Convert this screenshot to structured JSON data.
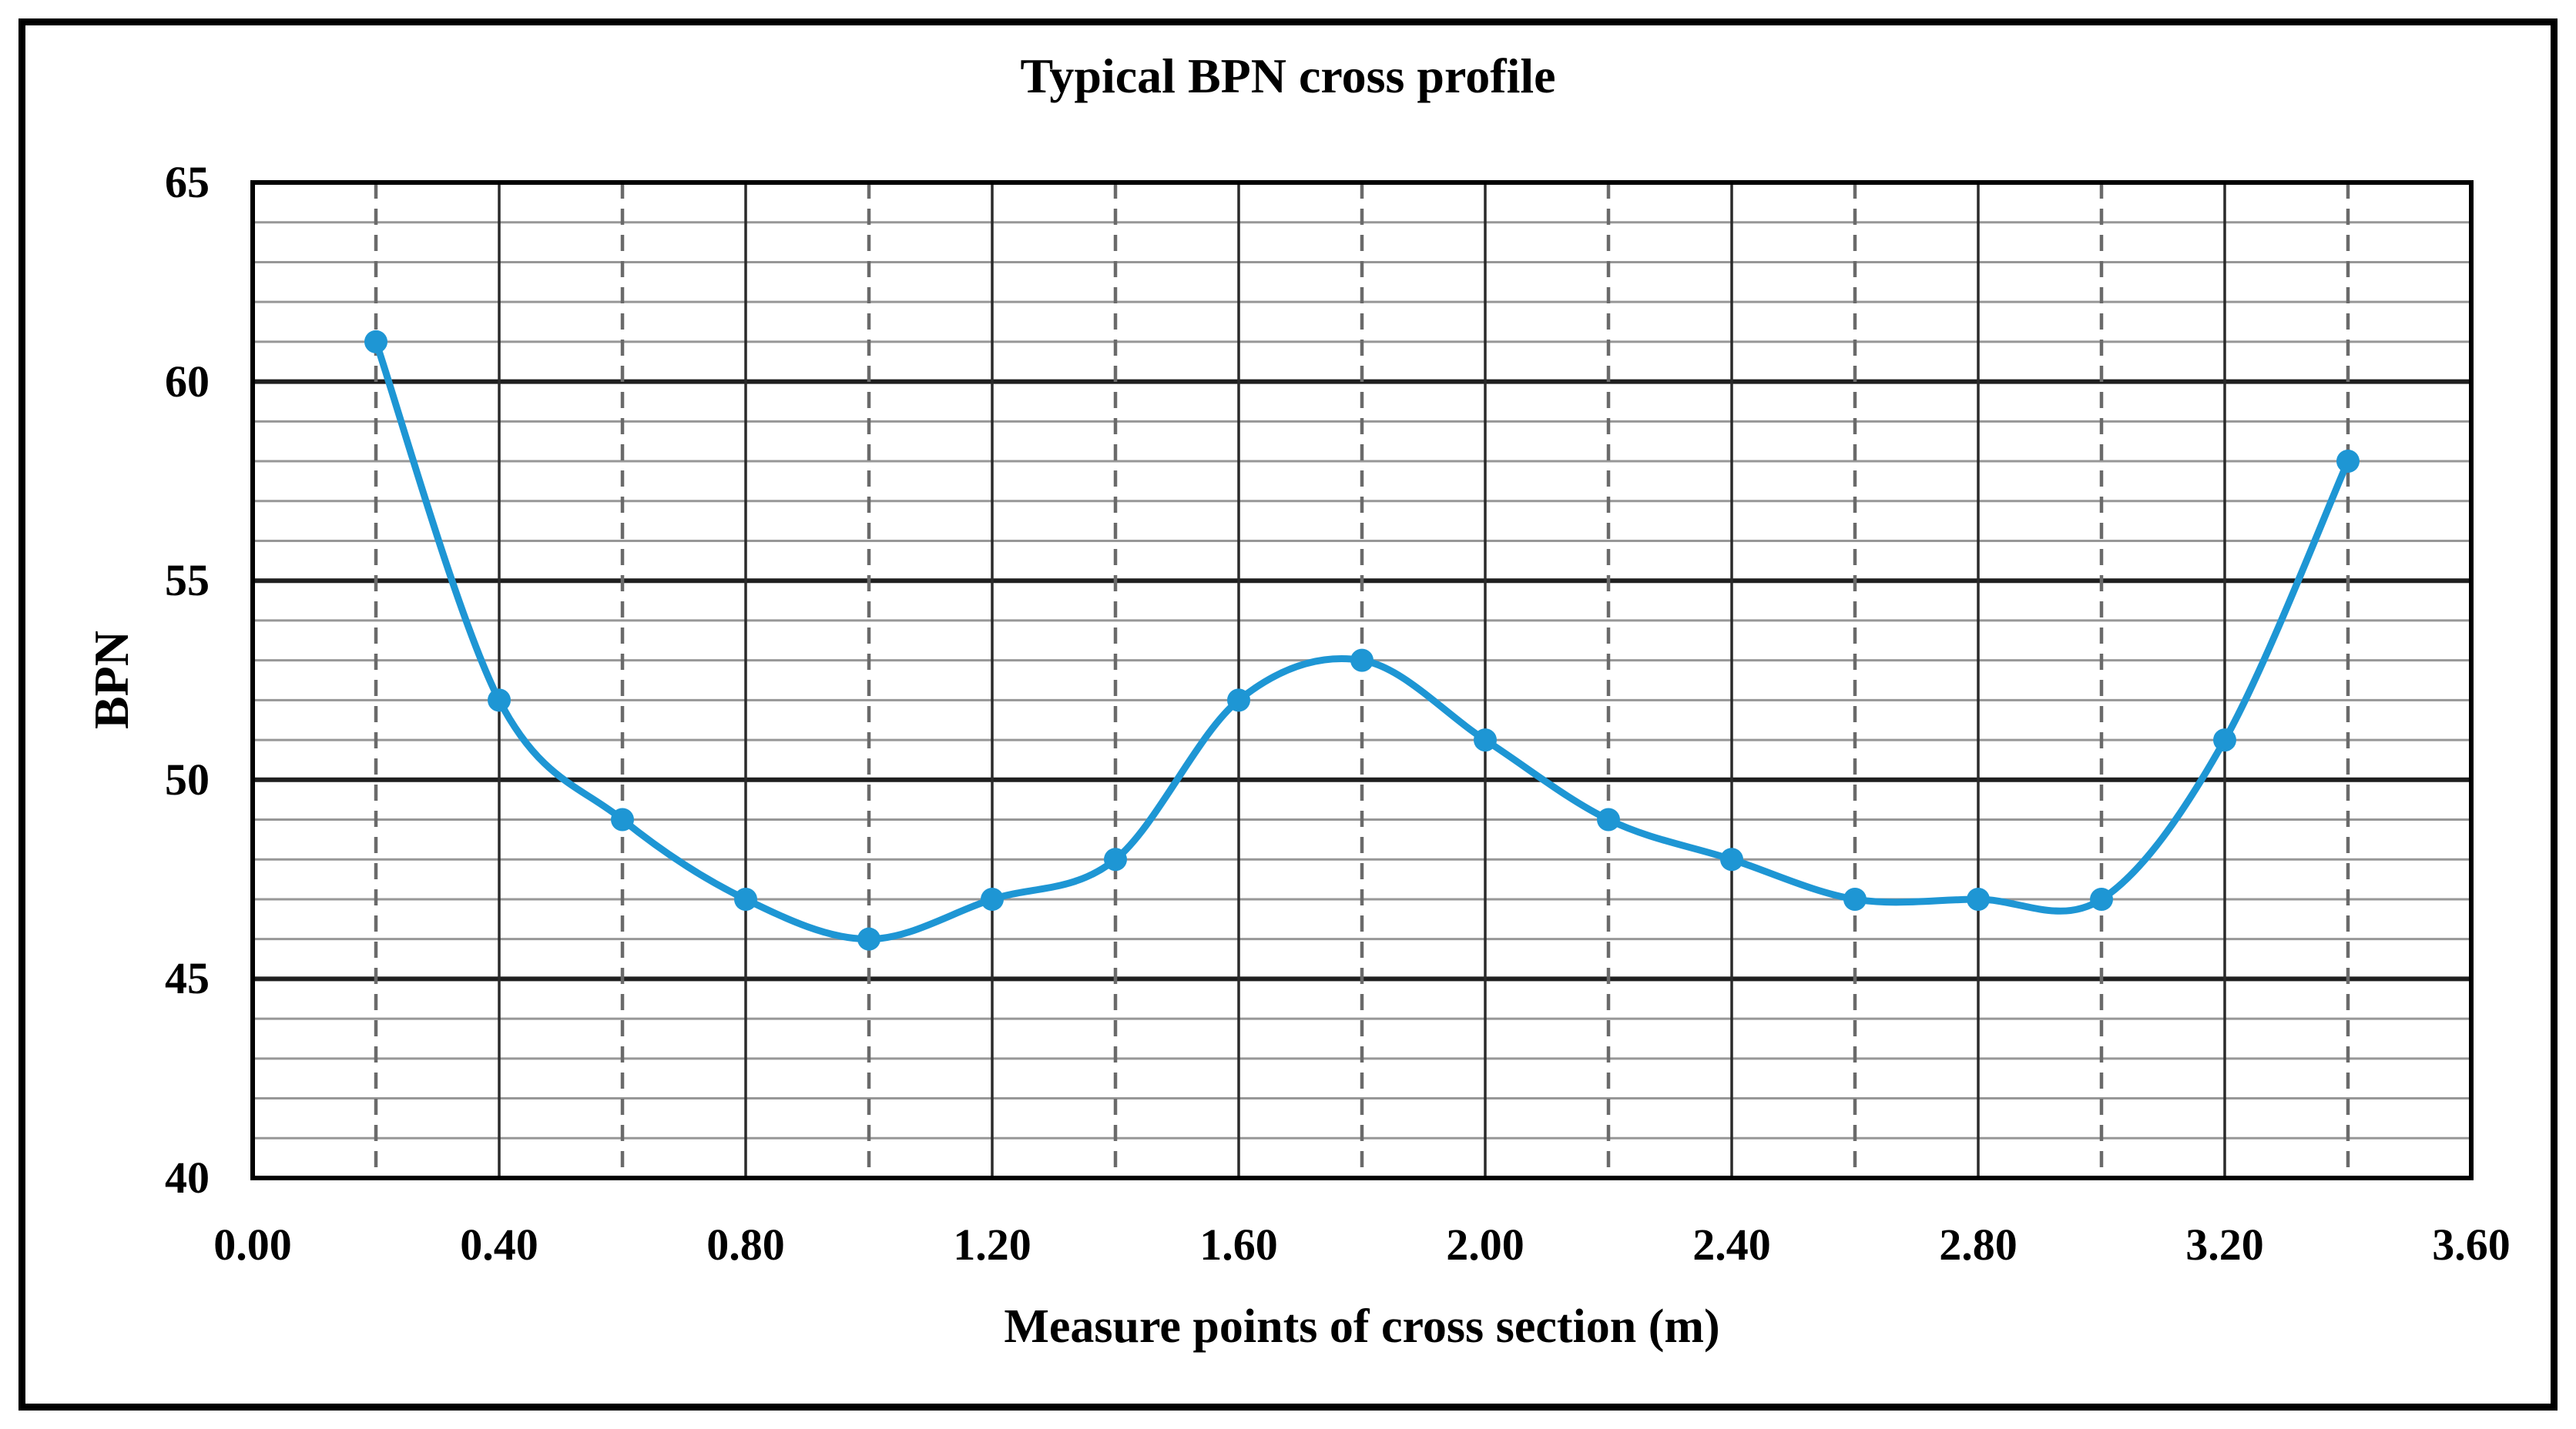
{
  "figure": {
    "background": "#ffffff",
    "frame_color": "#000000"
  },
  "chart_data": {
    "type": "line",
    "title": "Typical BPN cross profile",
    "xlabel": "Measure points of cross section (m)",
    "ylabel": "BPN",
    "series": [
      {
        "name": "BPN cross profile",
        "x": [
          0.2,
          0.4,
          0.6,
          0.8,
          1.0,
          1.2,
          1.4,
          1.6,
          1.8,
          2.0,
          2.2,
          2.4,
          2.6,
          2.8,
          3.0,
          3.2,
          3.4
        ],
        "values": [
          61,
          52,
          49,
          47,
          46,
          47,
          48,
          52,
          53,
          51,
          49,
          48,
          47,
          47,
          47,
          51,
          58
        ]
      }
    ],
    "xlim": [
      0.0,
      3.6
    ],
    "ylim": [
      40,
      65
    ],
    "x_tick_values": [
      0.0,
      0.4,
      0.8,
      1.2,
      1.6,
      2.0,
      2.4,
      2.8,
      3.2,
      3.6
    ],
    "x_tick_labels": [
      "0.00",
      "0.40",
      "0.80",
      "1.20",
      "1.60",
      "2.00",
      "2.40",
      "2.80",
      "3.20",
      "3.60"
    ],
    "y_tick_values": [
      40,
      45,
      50,
      55,
      60,
      65
    ],
    "y_tick_labels": [
      "40",
      "45",
      "50",
      "55",
      "60",
      "65"
    ],
    "grid": {
      "y_minor_step": 1,
      "y_major_step": 5,
      "x_solid_step": 0.4,
      "x_dashed_step": 0.2
    },
    "legend_position": "none",
    "smooth_line": true,
    "marker": "circle",
    "colors": {
      "line": "#1e96d4",
      "marker": "#1e96d4",
      "y_minor_grid": "#979797",
      "y_major_grid": "#1f1f1f",
      "x_solid_grid": "#2a2a2a",
      "x_dashed_grid": "#6a6a6a",
      "plot_border": "#000000",
      "text": "#000000"
    }
  }
}
